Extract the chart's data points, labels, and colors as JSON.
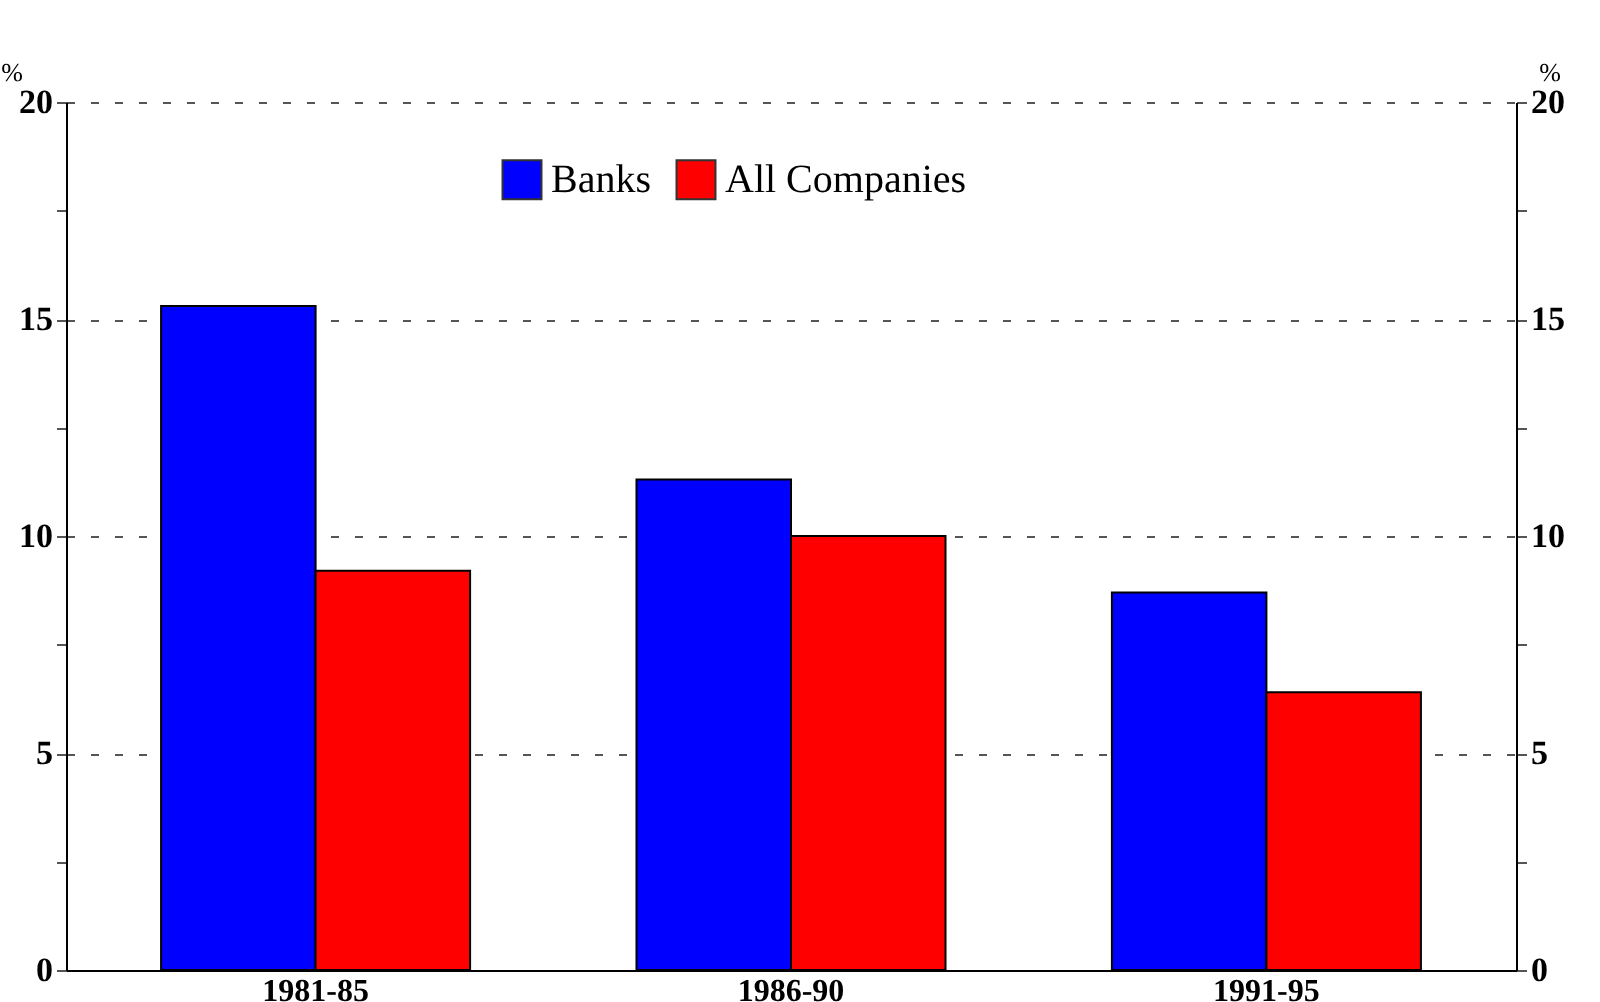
{
  "chart_data": {
    "type": "bar",
    "categories": [
      "1981-85",
      "1986-90",
      "1991-95"
    ],
    "series": [
      {
        "name": "Banks",
        "color": "#0000ff",
        "values": [
          15.3,
          11.3,
          8.7
        ]
      },
      {
        "name": "All Companies",
        "color": "#ff0000",
        "values": [
          9.2,
          10.0,
          6.4
        ]
      }
    ],
    "ylabel": "%",
    "y2label": "%",
    "ylim": [
      0,
      20
    ],
    "yticks": [
      0,
      {
        "value": 2.5,
        "label": null
      },
      5,
      {
        "value": 7.5,
        "label": null
      },
      10,
      {
        "value": 12.5,
        "label": null
      },
      15,
      {
        "value": 17.5,
        "label": null
      },
      20
    ],
    "y2lim": [
      0,
      20
    ],
    "y2ticks": [
      0,
      {
        "value": 2.5,
        "label": null
      },
      5,
      {
        "value": 7.5,
        "label": null
      },
      10,
      {
        "value": 12.5,
        "label": null
      },
      15,
      {
        "value": 17.5,
        "label": null
      },
      20
    ],
    "grid": "y",
    "legend": "top"
  }
}
